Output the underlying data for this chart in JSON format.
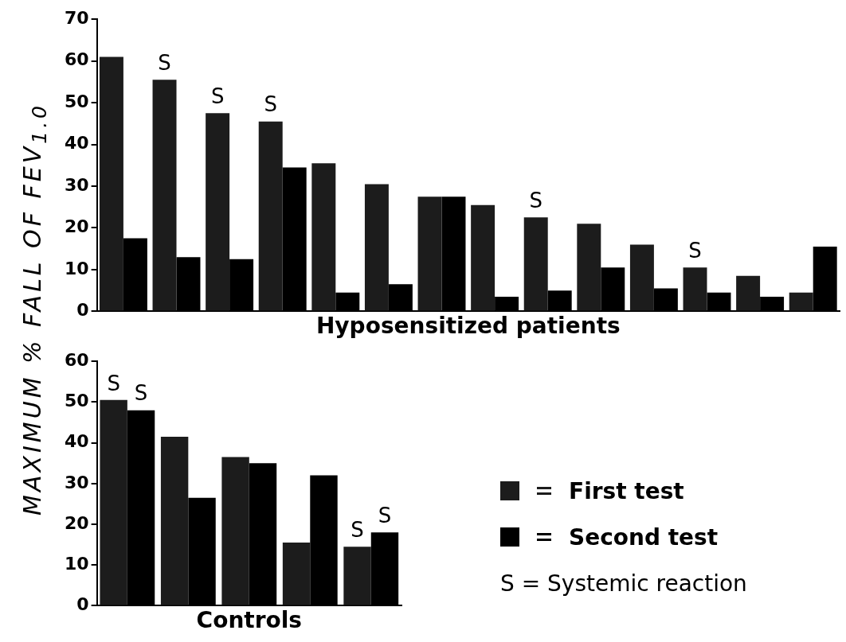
{
  "chart_data": [
    {
      "type": "bar",
      "xlabel": "Hyposensitized patients",
      "ylabel": "MAXIMUM % FALL OF FEV$_{1.0}$",
      "categories": [
        null,
        null,
        null,
        null,
        null,
        null,
        null,
        null,
        null,
        null,
        null,
        null,
        null,
        null
      ],
      "series": [
        {
          "color": "#1c1c1c",
          "values": [
            61,
            55.5,
            47.5,
            45.5,
            35.5,
            30.5,
            27.5,
            25.5,
            22.5,
            21,
            16,
            10.5,
            8.5,
            4.5
          ],
          "value_labels": [
            null,
            "S",
            "S",
            "S",
            null,
            null,
            null,
            null,
            "S",
            null,
            null,
            "S",
            null,
            null
          ]
        },
        {
          "color": "#000000",
          "values": [
            17.5,
            13,
            12.5,
            34.5,
            4.5,
            6.5,
            27.5,
            3.5,
            5,
            10.5,
            5.5,
            4.5,
            3.5,
            15.5
          ]
        }
      ],
      "ylim": [
        0,
        70
      ],
      "yticks": [
        0,
        10,
        20,
        30,
        40,
        50,
        60,
        70
      ],
      "grid": false,
      "legend": false
    },
    {
      "type": "bar",
      "xlabel": "Controls",
      "categories": [
        null,
        null,
        null,
        null,
        null
      ],
      "series": [
        {
          "name": "First test",
          "color": "#1c1c1c",
          "values": [
            50.5,
            41.5,
            36.5,
            15.5,
            14.5
          ],
          "value_labels": [
            "S",
            null,
            null,
            null,
            "S"
          ]
        },
        {
          "name": "Second test",
          "color": "#000000",
          "values": [
            48,
            26.5,
            35,
            32,
            18
          ],
          "value_labels": [
            "S",
            null,
            null,
            null,
            "S"
          ]
        }
      ],
      "ylim": [
        0,
        60
      ],
      "yticks": [
        0,
        10,
        20,
        30,
        40,
        50,
        60
      ],
      "grid": false,
      "legend": "right",
      "annotations": [
        "S = Systemic reaction"
      ]
    }
  ]
}
